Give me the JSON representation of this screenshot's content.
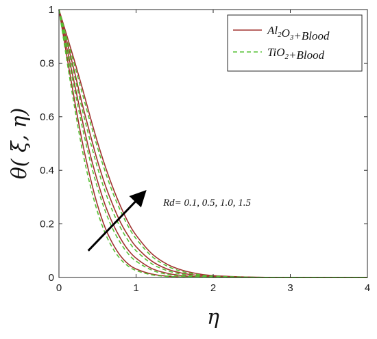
{
  "chart_data": {
    "type": "line",
    "title": "",
    "xlabel": "η",
    "ylabel": "θ( ξ, η)",
    "xlim": [
      0,
      4
    ],
    "ylim": [
      0,
      1
    ],
    "xticks": [
      0,
      1,
      2,
      3,
      4
    ],
    "yticks": [
      0,
      0.2,
      0.4,
      0.6,
      0.8,
      1
    ],
    "xtick_labels": [
      "0",
      "1",
      "2",
      "3",
      "4"
    ],
    "ytick_labels": [
      "0",
      "0.2",
      "0.4",
      "0.6",
      "0.8",
      "1"
    ],
    "grid": false,
    "legend_position": "top-right",
    "legend": [
      {
        "name": "Al2O3+Blood",
        "base": "Al",
        "sub1": "2",
        "mid": "O",
        "sub2": "3",
        "tail": "+Blood",
        "color": "#a0322f",
        "dash": "solid"
      },
      {
        "name": "TiO2+Blood",
        "base": "TiO",
        "sub1": "2",
        "mid": "",
        "sub2": "",
        "tail": "+Blood",
        "color": "#55c033",
        "dash": "dashed"
      }
    ],
    "annotation": {
      "text": "Rd= 0.1, 0.5, 1.0, 1.5",
      "arrow_from": [
        0.38,
        0.1
      ],
      "arrow_to": [
        1.08,
        0.31
      ]
    },
    "series": [
      {
        "name": "Al2O3+Blood",
        "rd": 0.1,
        "color": "#a0322f",
        "dash": "solid",
        "x": [
          0,
          0.1,
          0.2,
          0.3,
          0.4,
          0.5,
          0.6,
          0.7,
          0.8,
          0.9,
          1.0,
          1.2,
          1.4,
          1.6,
          1.8,
          2.0,
          2.5,
          3.0,
          3.5,
          4.0
        ],
        "y": [
          1,
          0.83,
          0.665,
          0.51,
          0.38,
          0.27,
          0.185,
          0.125,
          0.08,
          0.05,
          0.032,
          0.013,
          0.005,
          0.002,
          0.001,
          0.0005,
          0.0001,
          0,
          0,
          0
        ]
      },
      {
        "name": "Al2O3+Blood",
        "rd": 0.5,
        "color": "#a0322f",
        "dash": "solid",
        "x": [
          0,
          0.1,
          0.2,
          0.3,
          0.4,
          0.5,
          0.6,
          0.7,
          0.8,
          0.9,
          1.0,
          1.2,
          1.4,
          1.6,
          1.8,
          2.0,
          2.5,
          3.0,
          3.5,
          4.0
        ],
        "y": [
          1,
          0.86,
          0.725,
          0.59,
          0.465,
          0.36,
          0.27,
          0.2,
          0.145,
          0.102,
          0.072,
          0.034,
          0.016,
          0.007,
          0.003,
          0.0015,
          0.0002,
          0,
          0,
          0
        ]
      },
      {
        "name": "Al2O3+Blood",
        "rd": 1.0,
        "color": "#a0322f",
        "dash": "solid",
        "x": [
          0,
          0.1,
          0.2,
          0.3,
          0.4,
          0.5,
          0.6,
          0.7,
          0.8,
          0.9,
          1.0,
          1.2,
          1.4,
          1.6,
          1.8,
          2.0,
          2.5,
          3.0,
          3.5,
          4.0
        ],
        "y": [
          1,
          0.885,
          0.77,
          0.65,
          0.54,
          0.435,
          0.345,
          0.27,
          0.205,
          0.155,
          0.115,
          0.062,
          0.032,
          0.016,
          0.008,
          0.004,
          0.0008,
          0.0001,
          0,
          0
        ]
      },
      {
        "name": "Al2O3+Blood",
        "rd": 1.5,
        "color": "#a0322f",
        "dash": "solid",
        "x": [
          0,
          0.1,
          0.2,
          0.3,
          0.4,
          0.5,
          0.6,
          0.7,
          0.8,
          0.9,
          1.0,
          1.2,
          1.4,
          1.6,
          1.8,
          2.0,
          2.5,
          3.0,
          3.5,
          4.0
        ],
        "y": [
          1,
          0.905,
          0.81,
          0.71,
          0.605,
          0.505,
          0.415,
          0.335,
          0.265,
          0.205,
          0.158,
          0.09,
          0.05,
          0.027,
          0.014,
          0.007,
          0.0015,
          0.0003,
          0.0001,
          0
        ]
      },
      {
        "name": "TiO2+Blood",
        "rd": 0.1,
        "color": "#55c033",
        "dash": "dashed",
        "x": [
          0,
          0.1,
          0.2,
          0.3,
          0.4,
          0.5,
          0.6,
          0.7,
          0.8,
          0.9,
          1.0,
          1.2,
          1.4,
          1.6,
          1.8,
          2.0,
          2.5,
          3.0,
          3.5,
          4.0
        ],
        "y": [
          1,
          0.815,
          0.64,
          0.48,
          0.35,
          0.245,
          0.165,
          0.108,
          0.068,
          0.042,
          0.026,
          0.01,
          0.004,
          0.0015,
          0.0006,
          0.0002,
          0,
          0,
          0,
          0
        ]
      },
      {
        "name": "TiO2+Blood",
        "rd": 0.5,
        "color": "#55c033",
        "dash": "dashed",
        "x": [
          0,
          0.1,
          0.2,
          0.3,
          0.4,
          0.5,
          0.6,
          0.7,
          0.8,
          0.9,
          1.0,
          1.2,
          1.4,
          1.6,
          1.8,
          2.0,
          2.5,
          3.0,
          3.5,
          4.0
        ],
        "y": [
          1,
          0.85,
          0.705,
          0.565,
          0.44,
          0.335,
          0.248,
          0.18,
          0.128,
          0.088,
          0.061,
          0.028,
          0.012,
          0.005,
          0.002,
          0.001,
          0.0001,
          0,
          0,
          0
        ]
      },
      {
        "name": "TiO2+Blood",
        "rd": 1.0,
        "color": "#55c033",
        "dash": "dashed",
        "x": [
          0,
          0.1,
          0.2,
          0.3,
          0.4,
          0.5,
          0.6,
          0.7,
          0.8,
          0.9,
          1.0,
          1.2,
          1.4,
          1.6,
          1.8,
          2.0,
          2.5,
          3.0,
          3.5,
          4.0
        ],
        "y": [
          1,
          0.875,
          0.755,
          0.63,
          0.515,
          0.41,
          0.32,
          0.245,
          0.185,
          0.137,
          0.1,
          0.052,
          0.026,
          0.012,
          0.006,
          0.003,
          0.0005,
          0.0001,
          0,
          0
        ]
      },
      {
        "name": "TiO2+Blood",
        "rd": 1.5,
        "color": "#55c033",
        "dash": "dashed",
        "x": [
          0,
          0.1,
          0.2,
          0.3,
          0.4,
          0.5,
          0.6,
          0.7,
          0.8,
          0.9,
          1.0,
          1.2,
          1.4,
          1.6,
          1.8,
          2.0,
          2.5,
          3.0,
          3.5,
          4.0
        ],
        "y": [
          1,
          0.895,
          0.795,
          0.69,
          0.585,
          0.485,
          0.395,
          0.315,
          0.248,
          0.19,
          0.145,
          0.08,
          0.043,
          0.022,
          0.011,
          0.005,
          0.001,
          0.0002,
          0,
          0
        ]
      }
    ]
  }
}
